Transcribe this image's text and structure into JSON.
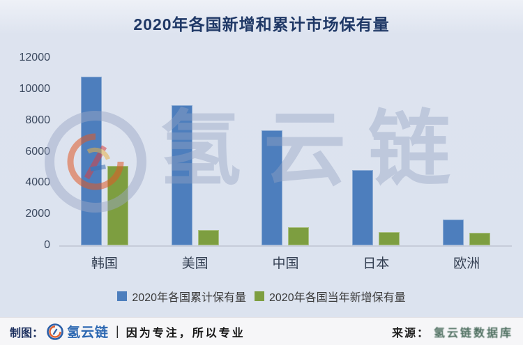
{
  "title": "2020年各国新增和累计市场保有量",
  "chart_data": {
    "type": "bar",
    "title": "2020年各国新增和累计市场保有量",
    "categories": [
      "韩国",
      "美国",
      "中国",
      "日本",
      "欧洲"
    ],
    "series": [
      {
        "name": "2020年各国累计保有量",
        "color": "#4d7ebd",
        "values": [
          10800,
          8950,
          7350,
          4800,
          1650
        ]
      },
      {
        "name": "2020年各国当年新增保有量",
        "color": "#7d9e40",
        "values": [
          5100,
          1000,
          1150,
          850,
          800
        ]
      }
    ],
    "xlabel": "",
    "ylabel": "",
    "ylim": [
      0,
      12000
    ],
    "yticks": [
      0,
      2000,
      4000,
      6000,
      8000,
      10000,
      12000
    ],
    "grid": false,
    "legend_position": "bottom"
  },
  "watermark": {
    "text": "氢云链"
  },
  "footer": {
    "made_by_label": "制图：",
    "brand": "氢云链",
    "divider": "|",
    "slogan": "因为专注，所以专业",
    "source_label": "来源：",
    "source_value": "氢云链数据库"
  },
  "colors": {
    "background": "#dce3ef",
    "title_text": "#1f3866",
    "bar_cumulative_blue": "#4d7ebd",
    "bar_new_green": "#7d9e40",
    "axis_text": "#3c4a60",
    "footer_background": "#f6f6f8",
    "brand_blue": "#2b67b1",
    "source_text_green": "#4e6f60",
    "watermark_blue_gray": "#93a2c1"
  }
}
